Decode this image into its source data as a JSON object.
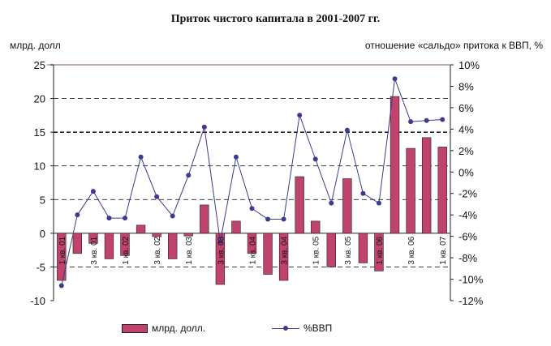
{
  "chart_data": {
    "type": "bar+line",
    "title": "Приток чистого капитала в 2001-2007 гг.",
    "ylabel_left": "млрд. долл",
    "ylabel_right": "отношение «сальдо» притока к ВВП, %",
    "left_axis": {
      "min": -10,
      "max": 25,
      "ticks": [
        "-10",
        "-5",
        "0",
        "5",
        "10",
        "15",
        "20",
        "25"
      ]
    },
    "right_axis": {
      "min": -12,
      "max": 10,
      "ticks": [
        "-12%",
        "-10%",
        "-8%",
        "-6%",
        "-4%",
        "-2%",
        "0%",
        "2%",
        "4%",
        "6%",
        "8%",
        "10%"
      ]
    },
    "categories": [
      "1 кв. 01",
      "",
      "3 кв. 01",
      "",
      "1 кв. 02",
      "",
      "3 кв. 02",
      "",
      "1 кв. 03",
      "",
      "3 кв. 03",
      "",
      "1 кв. 04",
      "",
      "3 кв. 04",
      "",
      "1 кв. 05",
      "",
      "3 кв. 05",
      "",
      "1 кв. 06",
      "",
      "3 кв. 06",
      "",
      "1 кв. 07"
    ],
    "series": [
      {
        "name": "млрд. долл.",
        "type": "bar",
        "axis": "left",
        "values": [
          -7.0,
          -3.0,
          -1.5,
          -3.8,
          -3.3,
          1.2,
          -0.5,
          -3.8,
          -0.4,
          4.2,
          -7.6,
          1.8,
          -3.0,
          -6.1,
          -7.0,
          8.4,
          1.8,
          -5.0,
          8.1,
          -4.4,
          -5.6,
          20.3,
          12.6,
          14.2,
          12.8
        ]
      },
      {
        "name": "%ВВП",
        "type": "line",
        "axis": "right",
        "values": [
          -10.6,
          -4.0,
          -1.8,
          -4.3,
          -4.3,
          1.4,
          -2.3,
          -4.1,
          -0.3,
          4.2,
          -6.5,
          1.4,
          -3.4,
          -4.4,
          -4.4,
          5.3,
          1.2,
          -2.9,
          3.9,
          -2.0,
          -2.9,
          8.7,
          4.7,
          4.8,
          4.9
        ]
      }
    ],
    "reference_lines": [
      {
        "axis": "left",
        "value": 15,
        "style": "dashed-bold"
      },
      {
        "axis": "left",
        "value": 10,
        "style": "dashed"
      },
      {
        "axis": "left",
        "value": 5,
        "style": "dashed"
      },
      {
        "axis": "left",
        "value": 20,
        "style": "dashed"
      },
      {
        "axis": "left",
        "value": -5,
        "style": "dashed"
      }
    ],
    "legend_position": "bottom",
    "colors": {
      "bar": "#c0436e",
      "line": "#3b3b8f",
      "top_rule": "#b08aa0"
    }
  }
}
